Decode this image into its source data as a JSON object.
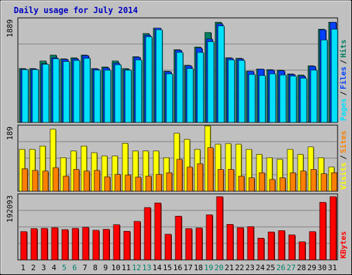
{
  "chart_data": [
    {
      "type": "bar",
      "panel": "hits-files-pages",
      "title": "Daily usage for July 2014",
      "y_max_label": "1889",
      "y_max": 1889,
      "ylim": [
        0,
        1889
      ],
      "grid": true,
      "categories": [
        "1",
        "2",
        "3",
        "4",
        "5",
        "6",
        "7",
        "8",
        "9",
        "10",
        "11",
        "12",
        "13",
        "14",
        "15",
        "16",
        "17",
        "18",
        "19",
        "20",
        "21",
        "22",
        "23",
        "24",
        "25",
        "26",
        "27",
        "28",
        "29",
        "30",
        "31"
      ],
      "weekend_days": [
        "5",
        "6",
        "12",
        "13",
        "19",
        "20",
        "26",
        "27"
      ],
      "legend": [
        {
          "label": "Pages",
          "color": "#00E0FF"
        },
        {
          "label": "Files",
          "color": "#0040FF"
        },
        {
          "label": "Hits",
          "color": "#008060"
        }
      ],
      "series": [
        {
          "name": "Hits",
          "color": "#008060",
          "values": [
            1000,
            1000,
            1140,
            1250,
            1180,
            1200,
            1250,
            1000,
            1030,
            1140,
            1000,
            1220,
            1650,
            1750,
            950,
            1350,
            1060,
            1400,
            1670,
            1860,
            1200,
            1190,
            950,
            990,
            980,
            970,
            900,
            880,
            1050,
            1730,
            1860
          ]
        },
        {
          "name": "Files",
          "color": "#0040FF",
          "values": [
            990,
            990,
            1090,
            1200,
            1170,
            1180,
            1240,
            990,
            1010,
            1100,
            980,
            1210,
            1620,
            1750,
            940,
            1340,
            1050,
            1380,
            1550,
            1830,
            1190,
            1180,
            950,
            990,
            970,
            960,
            890,
            860,
            1040,
            1720,
            1860
          ]
        },
        {
          "name": "Pages",
          "color": "#00E0FF",
          "values": [
            980,
            980,
            1080,
            1180,
            1130,
            1150,
            1190,
            970,
            970,
            1070,
            970,
            1160,
            1590,
            1720,
            900,
            1300,
            1000,
            1300,
            1500,
            1790,
            1160,
            1150,
            890,
            870,
            900,
            880,
            860,
            820,
            970,
            1530,
            1730
          ]
        }
      ]
    },
    {
      "type": "bar",
      "panel": "visits-sites",
      "y_max_label": "189",
      "y_max": 189,
      "ylim": [
        0,
        189
      ],
      "grid": true,
      "categories": [
        "1",
        "2",
        "3",
        "4",
        "5",
        "6",
        "7",
        "8",
        "9",
        "10",
        "11",
        "12",
        "13",
        "14",
        "15",
        "16",
        "17",
        "18",
        "19",
        "20",
        "21",
        "22",
        "23",
        "24",
        "25",
        "26",
        "27",
        "28",
        "29",
        "30",
        "31"
      ],
      "legend": [
        {
          "label": "Visits",
          "color": "#FFFF00"
        },
        {
          "label": "Sites",
          "color": "#FF8000"
        }
      ],
      "series": [
        {
          "name": "Visits",
          "color": "#FFFF00",
          "values": [
            125,
            125,
            135,
            185,
            100,
            120,
            135,
            115,
            105,
            105,
            143,
            120,
            120,
            120,
            100,
            173,
            155,
            125,
            195,
            140,
            142,
            140,
            125,
            110,
            100,
            95,
            125,
            110,
            132,
            100,
            72
          ]
        },
        {
          "name": "Sites",
          "color": "#FF8000",
          "values": [
            67,
            62,
            60,
            70,
            45,
            65,
            60,
            62,
            43,
            50,
            48,
            42,
            45,
            50,
            55,
            95,
            72,
            82,
            130,
            65,
            65,
            45,
            40,
            55,
            35,
            40,
            55,
            60,
            65,
            52,
            55
          ]
        }
      ]
    },
    {
      "type": "bar",
      "panel": "kbytes",
      "y_max_label": "192093",
      "y_max": 192093,
      "ylim": [
        0,
        192093
      ],
      "grid": true,
      "categories": [
        "1",
        "2",
        "3",
        "4",
        "5",
        "6",
        "7",
        "8",
        "9",
        "10",
        "11",
        "12",
        "13",
        "14",
        "15",
        "16",
        "17",
        "18",
        "19",
        "20",
        "21",
        "22",
        "23",
        "24",
        "25",
        "26",
        "27",
        "28",
        "29",
        "30",
        "31"
      ],
      "legend": [
        {
          "label": "KBytes",
          "color": "#FF0000"
        }
      ],
      "series": [
        {
          "name": "KBytes",
          "color": "#FF0000",
          "values": [
            86000,
            95000,
            96000,
            98000,
            92000,
            96000,
            99000,
            90000,
            93000,
            107000,
            87000,
            117000,
            159000,
            173000,
            78000,
            133000,
            95000,
            97000,
            137000,
            192093,
            108000,
            98000,
            101000,
            66000,
            85000,
            89000,
            76000,
            55000,
            86000,
            175000,
            192093
          ]
        }
      ]
    }
  ],
  "colors": {
    "frame_bg": "#C0C0C0",
    "plot_bg": "#C0C0C0",
    "grid": "#808080",
    "title": "#0000C0",
    "tick_weekday": "#000000",
    "tick_weekend": "#00806C",
    "legend_separator": "#000000"
  }
}
